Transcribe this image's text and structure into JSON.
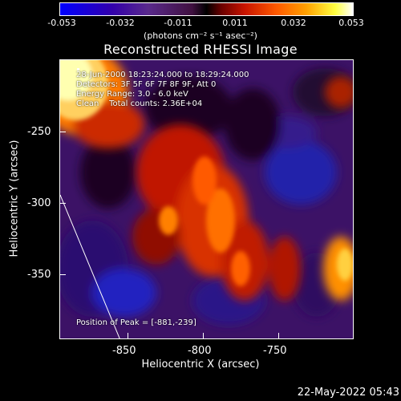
{
  "colorbar": {
    "ticks": [
      "-0.053",
      "-0.032",
      "-0.011",
      "0.011",
      "0.032",
      "0.053"
    ],
    "units": "(photons cm⁻² s⁻¹ asec⁻²)"
  },
  "title": "Reconstructed RHESSI Image",
  "info": {
    "time": "28-Jun-2000 18:23:24.000 to 18:29:24.000",
    "detectors": "Detectors: 3F 5F 6F 7F 8F 9F, Att 0",
    "energy": "Energy Range: 3.0 - 6.0 keV",
    "method": "Clean    Total counts: 2.36E+04"
  },
  "peak": "Position of Peak = [-881,-239]",
  "axes": {
    "ylabel": "Heliocentric Y (arcsec)",
    "xlabel": "Heliocentric X (arcsec)",
    "yticks": [
      "-250",
      "-300",
      "-350"
    ],
    "xticks": [
      "-850",
      "-800",
      "-750"
    ]
  },
  "footer_date": "22-May-2022 05:43"
}
